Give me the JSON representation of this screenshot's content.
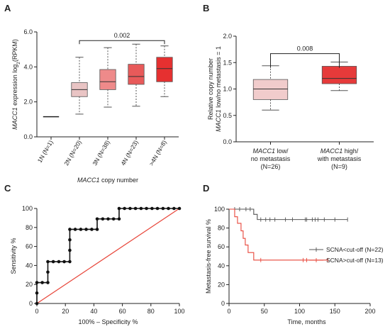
{
  "panels": {
    "A": "A",
    "B": "B",
    "C": "C",
    "D": "D"
  },
  "chart_data": [
    {
      "panel": "A",
      "type": "box",
      "ylabel": "MACC1 expression log2(RPKM)",
      "ylabel_parts": [
        "MACC1",
        " expression log",
        "2",
        "(RPKM)"
      ],
      "xlabel": "MACC1 copy number",
      "xlabel_parts": [
        "MACC1",
        " copy number"
      ],
      "ylim": [
        0,
        6
      ],
      "yticks": [
        "0.0",
        "2.0",
        "4.0",
        "6.0"
      ],
      "categories": [
        "1N (N=1)",
        "2N (N=20)",
        "3N (N=38)",
        "4N (N=23)",
        ">4N (N=8)"
      ],
      "boxes": [
        {
          "min": 1.15,
          "q1": 1.15,
          "median": 1.15,
          "q3": 1.15,
          "max": 1.15,
          "color": "#202020"
        },
        {
          "min": 1.3,
          "q1": 2.3,
          "median": 2.7,
          "q3": 3.1,
          "max": 4.55,
          "color": "#e9c4c4"
        },
        {
          "min": 1.7,
          "q1": 2.7,
          "median": 3.15,
          "q3": 3.85,
          "max": 5.1,
          "color": "#ee8a8a"
        },
        {
          "min": 1.75,
          "q1": 3.0,
          "median": 3.45,
          "q3": 4.15,
          "max": 5.3,
          "color": "#e85a5a"
        },
        {
          "min": 2.3,
          "q1": 3.15,
          "median": 3.9,
          "q3": 4.55,
          "max": 5.2,
          "color": "#e63030"
        }
      ],
      "annotation": {
        "text": "0.002",
        "from": 1,
        "to": 4,
        "y": 5.95
      }
    },
    {
      "panel": "B",
      "type": "box",
      "ylabel_line1": "Relative copy number",
      "ylabel_line2": "MACC1 low/no metastasis = 1",
      "ylabel_line2_parts": [
        "MACC1",
        " low/no metastasis = 1"
      ],
      "ylim": [
        0,
        2
      ],
      "yticks": [
        "0.0",
        "0.5",
        "1.0",
        "1.5",
        "2.0"
      ],
      "categories": [
        {
          "it": "MACC1",
          "line1": " low/",
          "line2": "no metastasis",
          "line3": "(N=26)"
        },
        {
          "it": "MACC1",
          "line1": " high/",
          "line2": "with metastasis",
          "line3": "(N=9)"
        }
      ],
      "boxes": [
        {
          "min": 0.6,
          "q1": 0.8,
          "median": 1.0,
          "q3": 1.18,
          "max": 1.44,
          "color": "#f1cccc"
        },
        {
          "min": 0.97,
          "q1": 1.1,
          "median": 1.2,
          "q3": 1.43,
          "max": 1.51,
          "color": "#e63a3a"
        }
      ],
      "annotation": {
        "text": "0.008",
        "from": 0,
        "to": 1,
        "y": 1.75
      }
    },
    {
      "panel": "C",
      "type": "line",
      "xlabel": "100% – Specificity %",
      "ylabel": "Sensitivity %",
      "xlim": [
        0,
        100
      ],
      "ylim": [
        0,
        100
      ],
      "xticks": [
        "0",
        "20",
        "40",
        "60",
        "80",
        "100"
      ],
      "yticks": [
        "0",
        "20",
        "40",
        "60",
        "80",
        "100"
      ],
      "roc": [
        [
          0,
          0
        ],
        [
          0,
          11
        ],
        [
          0,
          22
        ],
        [
          3.8,
          22
        ],
        [
          7.7,
          22
        ],
        [
          7.7,
          33
        ],
        [
          7.7,
          44
        ],
        [
          11.5,
          44
        ],
        [
          15.4,
          44
        ],
        [
          19.2,
          44
        ],
        [
          23.1,
          44
        ],
        [
          23.1,
          56
        ],
        [
          23.1,
          67
        ],
        [
          23.1,
          78
        ],
        [
          26.9,
          78
        ],
        [
          30.8,
          78
        ],
        [
          34.6,
          78
        ],
        [
          38.5,
          78
        ],
        [
          42.3,
          78
        ],
        [
          42.3,
          89
        ],
        [
          46.2,
          89
        ],
        [
          50,
          89
        ],
        [
          53.8,
          89
        ],
        [
          57.7,
          89
        ],
        [
          57.7,
          100
        ],
        [
          61.5,
          100
        ],
        [
          65.4,
          100
        ],
        [
          69.2,
          100
        ],
        [
          73.1,
          100
        ],
        [
          76.9,
          100
        ],
        [
          80.8,
          100
        ],
        [
          84.6,
          100
        ],
        [
          88.5,
          100
        ],
        [
          92.3,
          100
        ],
        [
          96.2,
          100
        ],
        [
          100,
          100
        ]
      ],
      "reference": [
        [
          0,
          0
        ],
        [
          100,
          100
        ]
      ],
      "roc_color": "#111111",
      "reference_color": "#e8463a"
    },
    {
      "panel": "D",
      "type": "survival",
      "xlabel": "Time, months",
      "ylabel": "Metastasis-free survival %",
      "xlim": [
        0,
        200
      ],
      "ylim": [
        0,
        100
      ],
      "xticks": [
        "0",
        "50",
        "100",
        "150",
        "200"
      ],
      "yticks": [
        "0",
        "20",
        "40",
        "60",
        "80",
        "100"
      ],
      "series": [
        {
          "name": "SCNA<cut-off (N=22)",
          "color": "#555555",
          "steps": [
            [
              0,
              100
            ],
            [
              35,
              100
            ],
            [
              35,
              94.5
            ],
            [
              40,
              94.5
            ],
            [
              40,
              89
            ],
            [
              168,
              89
            ]
          ],
          "censors": [
            8,
            15,
            24,
            30,
            45,
            52,
            58,
            65,
            80,
            90,
            108,
            110,
            118,
            122,
            126,
            135,
            150,
            168
          ]
        },
        {
          "name": "SCNA>cut-off (N=13)",
          "color": "#e8463a",
          "steps": [
            [
              0,
              100
            ],
            [
              8,
              100
            ],
            [
              8,
              92
            ],
            [
              12,
              92
            ],
            [
              12,
              85
            ],
            [
              17,
              85
            ],
            [
              17,
              77
            ],
            [
              20,
              77
            ],
            [
              20,
              69
            ],
            [
              23,
              69
            ],
            [
              23,
              62
            ],
            [
              27,
              62
            ],
            [
              27,
              54
            ],
            [
              35,
              54
            ],
            [
              35,
              46
            ],
            [
              140,
              46
            ]
          ],
          "censors": [
            45,
            105,
            110,
            140
          ]
        }
      ],
      "legend_position": "right"
    }
  ]
}
